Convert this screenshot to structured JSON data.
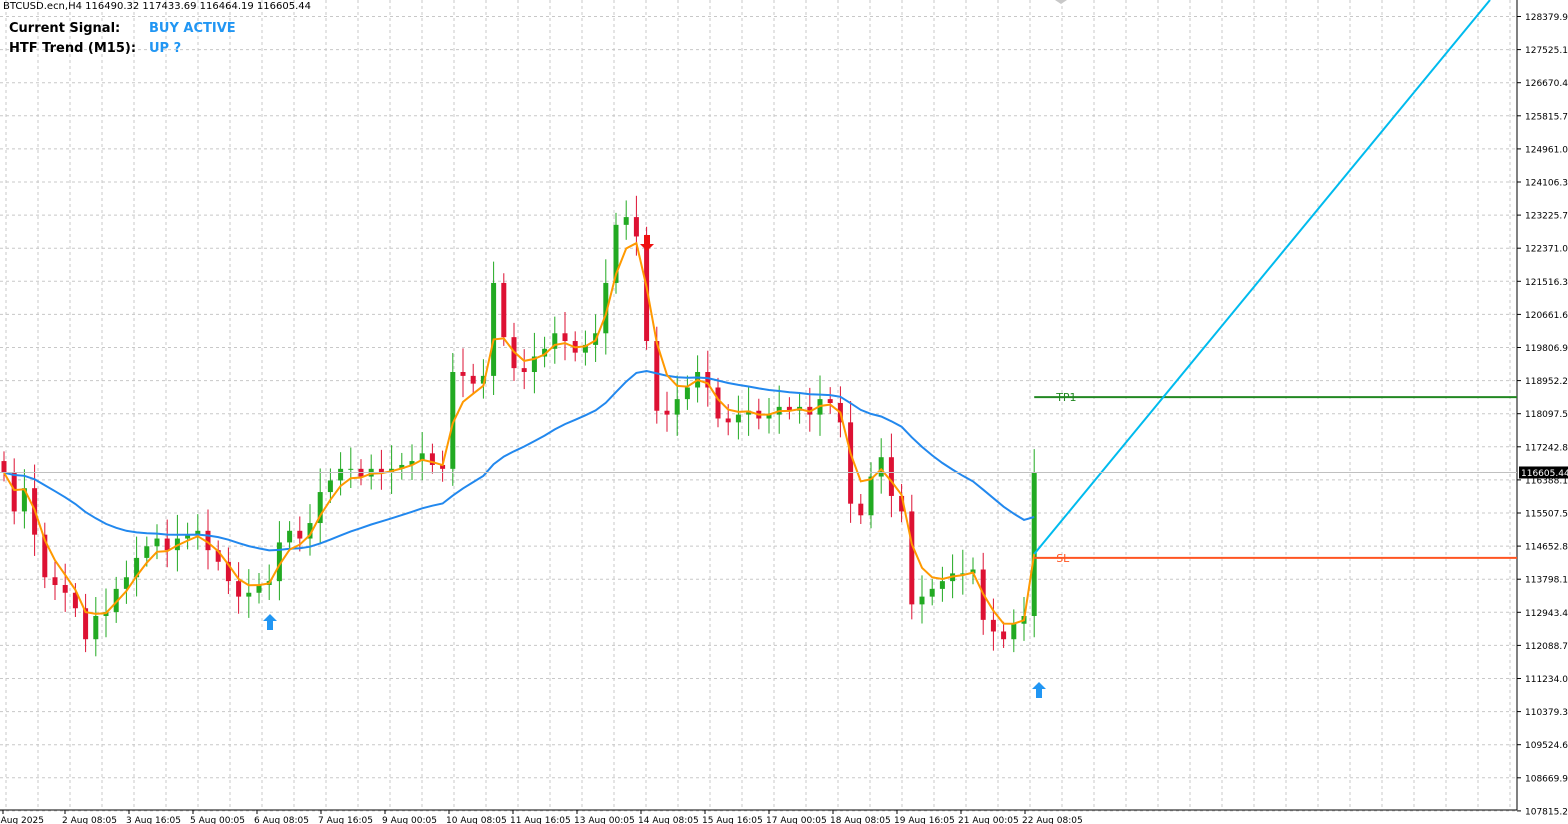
{
  "window": {
    "symbol_info": "BTCUSD.ecn,H4  116490.32 117433.69 116464.19 116605.44"
  },
  "panel": {
    "signal_label": "Current Signal:",
    "signal_value": "BUY ACTIVE",
    "trend_label": "HTF Trend (M15):",
    "trend_value": "UP ?"
  },
  "price_axis": {
    "labels": [
      "128379.90",
      "127525.10",
      "126670.40",
      "125815.70",
      "124961.00",
      "124106.30",
      "123225.70",
      "122371.00",
      "121516.30",
      "120661.60",
      "119806.90",
      "118952.20",
      "118097.50",
      "117242.80",
      "116388.10",
      "115507.50",
      "114652.80",
      "113798.10",
      "112943.40",
      "112088.70",
      "111234.00",
      "110379.30",
      "109524.60",
      "108669.90",
      "107815.20"
    ],
    "current_price": "116605.44"
  },
  "time_axis": {
    "labels": [
      "1 Aug 2025",
      "2 Aug 08:05",
      "3 Aug 16:05",
      "5 Aug 00:05",
      "6 Aug 08:05",
      "7 Aug 16:05",
      "9 Aug 00:05",
      "10 Aug 08:05",
      "11 Aug 16:05",
      "13 Aug 00:05",
      "14 Aug 08:05",
      "15 Aug 16:05",
      "17 Aug 00:05",
      "18 Aug 08:05",
      "19 Aug 16:05",
      "21 Aug 00:05",
      "22 Aug 08:05"
    ]
  },
  "levels": {
    "tp_label": "TP1",
    "sl_label": "SL"
  },
  "colors": {
    "bull": "#22aa22",
    "bear": "#dd1133",
    "ema_fast": "#ff9900",
    "ema_slow": "#2288ee",
    "target_line": "#00bbee",
    "tp": "#228822",
    "sl": "#ff5522",
    "buy_arrow": "#2196f3",
    "sell_arrow": "#ee1111",
    "signal_text": "#2196f3"
  },
  "chart_data": {
    "type": "candlestick",
    "symbol": "BTCUSD.ecn",
    "timeframe": "H4",
    "ohlc_last": {
      "open": 116490.32,
      "high": 117433.69,
      "low": 116464.19,
      "close": 116605.44
    },
    "ylim": [
      107815.2,
      128379.9
    ],
    "close_path": [
      116600,
      115600,
      116200,
      115000,
      113900,
      113700,
      113500,
      113100,
      112300,
      112900,
      113000,
      113600,
      113900,
      114400,
      114700,
      114900,
      114600,
      114900,
      115000,
      115100,
      114600,
      114300,
      113800,
      113400,
      113500,
      113700,
      113800,
      114800,
      115100,
      114900,
      115300,
      116100,
      116400,
      116700,
      116700,
      116500,
      116700,
      116600,
      116700,
      116800,
      116900,
      117100,
      116800,
      116700,
      119200,
      119100,
      118900,
      119100,
      121500,
      120100,
      119300,
      119200,
      119600,
      119800,
      120200,
      120000,
      119700,
      119900,
      120200,
      121500,
      123000,
      123200,
      122700,
      120000,
      118200,
      118100,
      118500,
      118800,
      119200,
      118800,
      118000,
      117900,
      118100,
      118200,
      118000,
      118100,
      118300,
      118200,
      118300,
      118100,
      118500,
      118400,
      117900,
      115800,
      115500,
      116500,
      117000,
      116000,
      115600,
      113200,
      113400,
      113600,
      113800,
      114000,
      114000,
      114100,
      112800,
      112500,
      112300,
      112700,
      112900,
      116600
    ],
    "buy_signals_near": [
      "6 Aug 08:05",
      "22 Aug 08:05"
    ],
    "sell_signals_near": [
      "14 Aug 08:05"
    ],
    "tp1_level": 118550,
    "sl_level": 114400,
    "entry_price": 114500
  }
}
